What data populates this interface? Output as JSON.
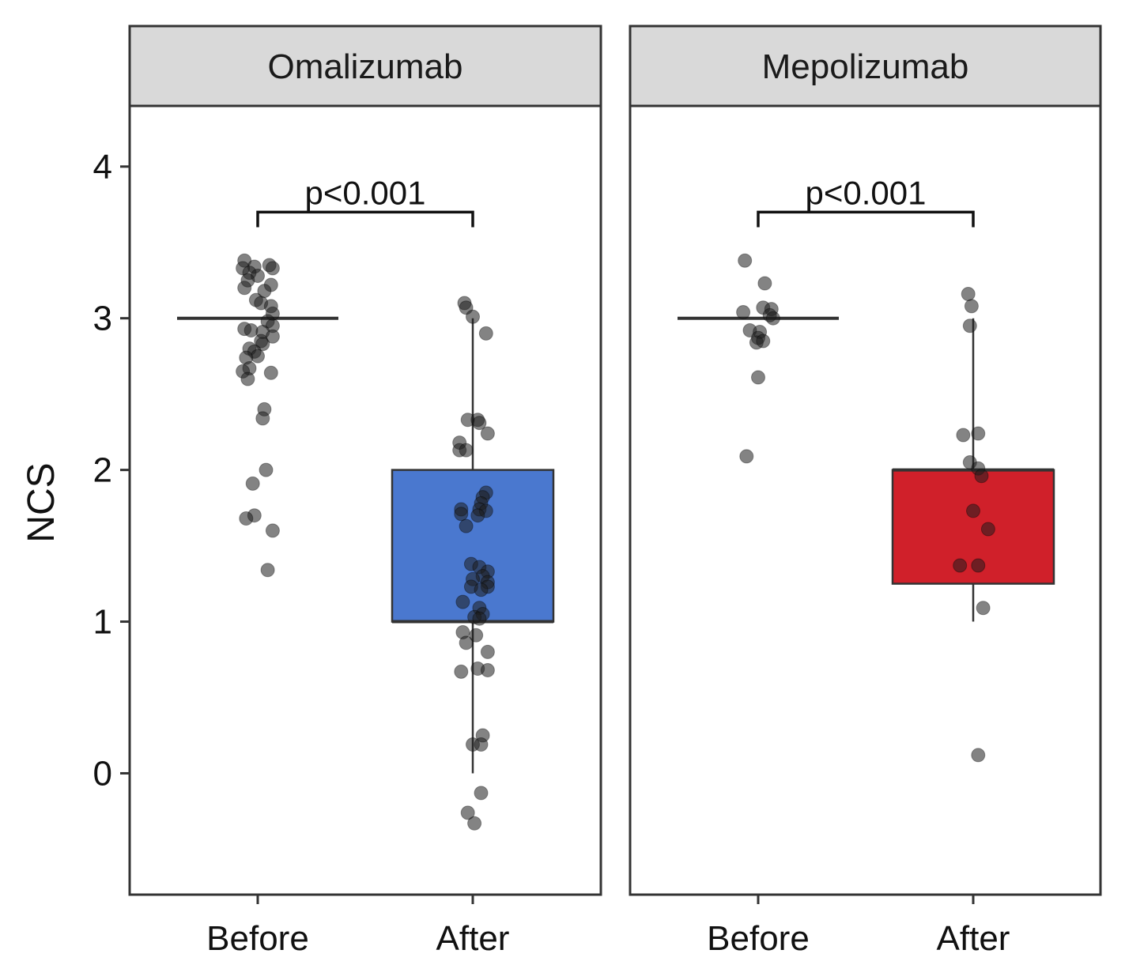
{
  "chart_data": {
    "type": "box",
    "ylabel": "NCS",
    "xlabel": "",
    "ylim": [
      -0.8,
      4.4
    ],
    "yticks": [
      0,
      1,
      2,
      3,
      4
    ],
    "grid": false,
    "legend": "none",
    "categories": [
      "Before",
      "After"
    ],
    "panels": [
      {
        "name": "Omalizumab",
        "annotation": "p<0.001",
        "groups": [
          {
            "label": "Before",
            "fill": "#ffffff",
            "box": {
              "q1": 3,
              "median": 3,
              "q3": 3,
              "whisker_low": 3,
              "whisker_high": 3
            },
            "points": [
              {
                "x": -0.08,
                "y": 3.38
              },
              {
                "x": -0.02,
                "y": 3.34
              },
              {
                "x": 0.07,
                "y": 3.35
              },
              {
                "x": 0.09,
                "y": 3.33
              },
              {
                "x": -0.09,
                "y": 3.33
              },
              {
                "x": -0.05,
                "y": 3.3
              },
              {
                "x": 0.0,
                "y": 3.28
              },
              {
                "x": -0.06,
                "y": 3.25
              },
              {
                "x": 0.08,
                "y": 3.22
              },
              {
                "x": -0.08,
                "y": 3.2
              },
              {
                "x": 0.04,
                "y": 3.18
              },
              {
                "x": -0.01,
                "y": 3.12
              },
              {
                "x": 0.02,
                "y": 3.1
              },
              {
                "x": 0.08,
                "y": 3.08
              },
              {
                "x": 0.09,
                "y": 3.03
              },
              {
                "x": 0.06,
                "y": 2.98
              },
              {
                "x": 0.09,
                "y": 2.95
              },
              {
                "x": -0.08,
                "y": 2.93
              },
              {
                "x": -0.04,
                "y": 2.92
              },
              {
                "x": 0.03,
                "y": 2.91
              },
              {
                "x": 0.09,
                "y": 2.88
              },
              {
                "x": 0.02,
                "y": 2.85
              },
              {
                "x": 0.03,
                "y": 2.83
              },
              {
                "x": -0.05,
                "y": 2.8
              },
              {
                "x": -0.02,
                "y": 2.78
              },
              {
                "x": 0.0,
                "y": 2.75
              },
              {
                "x": -0.07,
                "y": 2.74
              },
              {
                "x": -0.05,
                "y": 2.67
              },
              {
                "x": -0.09,
                "y": 2.65
              },
              {
                "x": 0.08,
                "y": 2.64
              },
              {
                "x": -0.06,
                "y": 2.6
              },
              {
                "x": 0.04,
                "y": 2.4
              },
              {
                "x": 0.03,
                "y": 2.34
              },
              {
                "x": 0.05,
                "y": 2.0
              },
              {
                "x": -0.03,
                "y": 1.91
              },
              {
                "x": -0.02,
                "y": 1.7
              },
              {
                "x": -0.07,
                "y": 1.68
              },
              {
                "x": 0.09,
                "y": 1.6
              },
              {
                "x": 0.06,
                "y": 1.34
              }
            ]
          },
          {
            "label": "After",
            "fill": "#4a78cf",
            "box": {
              "q1": 1,
              "median": 1,
              "q3": 2,
              "whisker_low": 0,
              "whisker_high": 3
            },
            "points": [
              {
                "x": -0.05,
                "y": 3.1
              },
              {
                "x": -0.04,
                "y": 3.07
              },
              {
                "x": 0.0,
                "y": 3.01
              },
              {
                "x": 0.08,
                "y": 2.9
              },
              {
                "x": -0.03,
                "y": 2.33
              },
              {
                "x": 0.03,
                "y": 2.33
              },
              {
                "x": 0.04,
                "y": 2.31
              },
              {
                "x": 0.09,
                "y": 2.24
              },
              {
                "x": -0.08,
                "y": 2.18
              },
              {
                "x": -0.08,
                "y": 2.13
              },
              {
                "x": -0.04,
                "y": 2.13
              },
              {
                "x": 0.08,
                "y": 1.85
              },
              {
                "x": 0.06,
                "y": 1.82
              },
              {
                "x": 0.05,
                "y": 1.78
              },
              {
                "x": 0.04,
                "y": 1.74
              },
              {
                "x": -0.07,
                "y": 1.74
              },
              {
                "x": 0.08,
                "y": 1.73
              },
              {
                "x": -0.07,
                "y": 1.71
              },
              {
                "x": 0.03,
                "y": 1.7
              },
              {
                "x": -0.04,
                "y": 1.63
              },
              {
                "x": -0.01,
                "y": 1.38
              },
              {
                "x": 0.04,
                "y": 1.36
              },
              {
                "x": 0.09,
                "y": 1.33
              },
              {
                "x": 0.06,
                "y": 1.3
              },
              {
                "x": 0.0,
                "y": 1.28
              },
              {
                "x": 0.09,
                "y": 1.26
              },
              {
                "x": 0.09,
                "y": 1.23
              },
              {
                "x": -0.01,
                "y": 1.23
              },
              {
                "x": 0.05,
                "y": 1.21
              },
              {
                "x": -0.06,
                "y": 1.13
              },
              {
                "x": 0.04,
                "y": 1.09
              },
              {
                "x": 0.06,
                "y": 1.05
              },
              {
                "x": 0.01,
                "y": 1.03
              },
              {
                "x": 0.04,
                "y": 1.02
              },
              {
                "x": -0.06,
                "y": 0.93
              },
              {
                "x": 0.02,
                "y": 0.91
              },
              {
                "x": -0.04,
                "y": 0.86
              },
              {
                "x": 0.09,
                "y": 0.8
              },
              {
                "x": 0.03,
                "y": 0.69
              },
              {
                "x": -0.07,
                "y": 0.67
              },
              {
                "x": 0.09,
                "y": 0.68
              },
              {
                "x": 0.06,
                "y": 0.25
              },
              {
                "x": 0.0,
                "y": 0.19
              },
              {
                "x": 0.05,
                "y": 0.19
              },
              {
                "x": 0.05,
                "y": -0.13
              },
              {
                "x": -0.03,
                "y": -0.26
              },
              {
                "x": 0.01,
                "y": -0.33
              }
            ]
          }
        ]
      },
      {
        "name": "Mepolizumab",
        "annotation": "p<0.001",
        "groups": [
          {
            "label": "Before",
            "fill": "#ffffff",
            "box": {
              "q1": 3,
              "median": 3,
              "q3": 3,
              "whisker_low": 3,
              "whisker_high": 3
            },
            "points": [
              {
                "x": -0.08,
                "y": 3.38
              },
              {
                "x": 0.04,
                "y": 3.23
              },
              {
                "x": 0.03,
                "y": 3.07
              },
              {
                "x": 0.08,
                "y": 3.06
              },
              {
                "x": -0.09,
                "y": 3.04
              },
              {
                "x": 0.07,
                "y": 3.02
              },
              {
                "x": 0.09,
                "y": 3.0
              },
              {
                "x": -0.05,
                "y": 2.92
              },
              {
                "x": 0.01,
                "y": 2.91
              },
              {
                "x": 0.0,
                "y": 2.87
              },
              {
                "x": -0.01,
                "y": 2.84
              },
              {
                "x": 0.03,
                "y": 2.85
              },
              {
                "x": 0.0,
                "y": 2.61
              },
              {
                "x": -0.07,
                "y": 2.09
              }
            ]
          },
          {
            "label": "After",
            "fill": "#d0202a",
            "box": {
              "q1": 1.25,
              "median": 2,
              "q3": 2,
              "whisker_low": 1,
              "whisker_high": 3
            },
            "points": [
              {
                "x": -0.03,
                "y": 3.16
              },
              {
                "x": -0.01,
                "y": 3.08
              },
              {
                "x": -0.02,
                "y": 2.95
              },
              {
                "x": 0.03,
                "y": 2.24
              },
              {
                "x": -0.06,
                "y": 2.23
              },
              {
                "x": -0.02,
                "y": 2.05
              },
              {
                "x": 0.03,
                "y": 2.01
              },
              {
                "x": 0.05,
                "y": 1.96
              },
              {
                "x": 0.0,
                "y": 1.73
              },
              {
                "x": 0.09,
                "y": 1.61
              },
              {
                "x": -0.08,
                "y": 1.37
              },
              {
                "x": 0.03,
                "y": 1.37
              },
              {
                "x": 0.06,
                "y": 1.09
              },
              {
                "x": 0.03,
                "y": 0.12
              }
            ]
          }
        ]
      }
    ]
  }
}
